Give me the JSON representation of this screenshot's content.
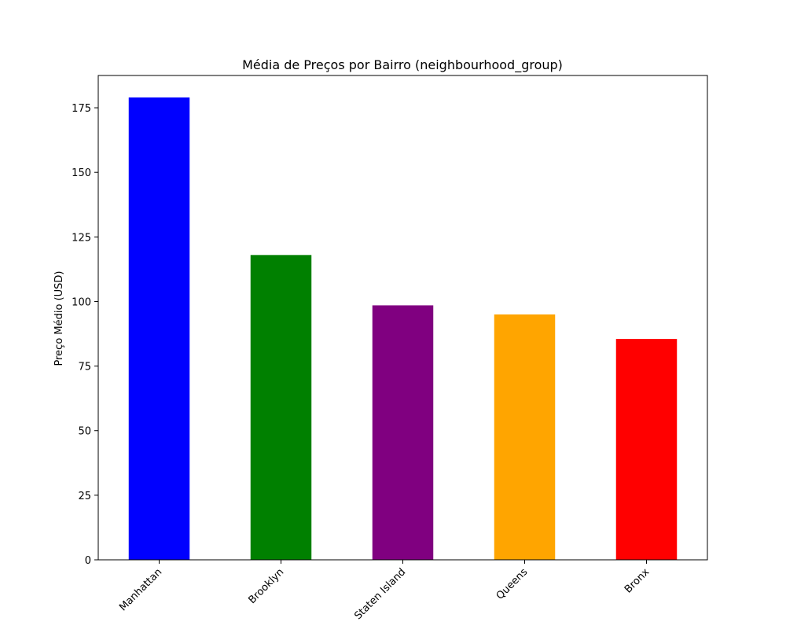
{
  "chart_data": {
    "type": "bar",
    "title": "Média de Preços por Bairro (neighbourhood_group)",
    "xlabel": "",
    "ylabel": "Preço Médio (USD)",
    "categories": [
      "Manhattan",
      "Brooklyn",
      "Staten Island",
      "Queens",
      "Bronx"
    ],
    "values": [
      179,
      118,
      98.5,
      95,
      85.5
    ],
    "colors": [
      "#0000ff",
      "#008000",
      "#800080",
      "#ffa500",
      "#ff0000"
    ],
    "ylim": [
      0,
      187.5
    ],
    "yticks": [
      0,
      25,
      50,
      75,
      100,
      125,
      150,
      175
    ],
    "grid": false,
    "legend": "none"
  }
}
